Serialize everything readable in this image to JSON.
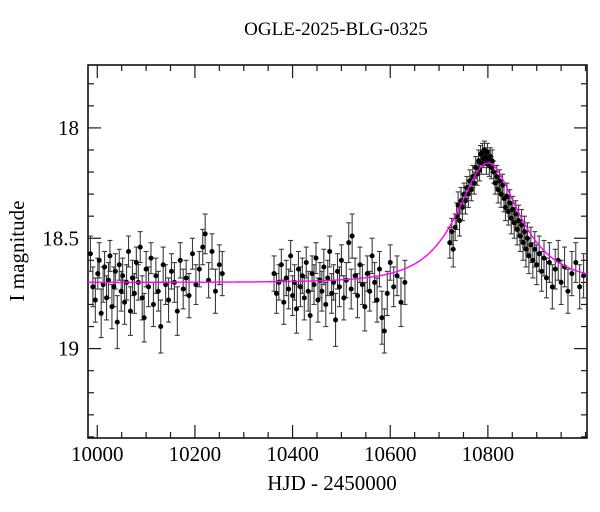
{
  "chart_data": {
    "type": "scatter",
    "title": "OGLE-2025-BLG-0325",
    "xlabel": "HJD - 2450000",
    "ylabel": "I magnitude",
    "grid": false,
    "legend": null,
    "x_range": [
      9981,
      11003
    ],
    "ylim": [
      19.405,
      17.715
    ],
    "y_axis_inverted": true,
    "x_major_ticks": [
      10000,
      10200,
      10400,
      10600,
      10800
    ],
    "x_tick_labels": [
      "10000",
      "10200",
      "10400",
      "10600",
      "10800"
    ],
    "x_minor_step": 50,
    "y_major_ticks": [
      18,
      18.5,
      19
    ],
    "y_tick_labels": [
      "18",
      "18.5",
      "19"
    ],
    "y_minor_step": 0.1,
    "marker_color": "#000000",
    "errorbar_color": "#3c3c3c",
    "model": {
      "type": "paczynski_microlensing",
      "baseline_mag": 18.7,
      "t0": 10800,
      "tE": 90,
      "u0": 0.72,
      "peak_mag": 18.16,
      "color": "#ff00ff"
    },
    "points_format": [
      "hjd_minus_2450000",
      "I_mag",
      "err_mag"
    ],
    "points": [
      [
        9986,
        18.57,
        0.08
      ],
      [
        9991,
        18.72,
        0.09
      ],
      [
        9996,
        18.78,
        0.1
      ],
      [
        10001,
        18.66,
        0.07
      ],
      [
        10004,
        18.6,
        0.08
      ],
      [
        10008,
        18.84,
        0.11
      ],
      [
        10012,
        18.71,
        0.08
      ],
      [
        10015,
        18.63,
        0.07
      ],
      [
        10019,
        18.77,
        0.1
      ],
      [
        10023,
        18.69,
        0.08
      ],
      [
        10026,
        18.58,
        0.07
      ],
      [
        10030,
        18.81,
        0.1
      ],
      [
        10034,
        18.72,
        0.09
      ],
      [
        10037,
        18.65,
        0.08
      ],
      [
        10041,
        18.88,
        0.12
      ],
      [
        10045,
        18.62,
        0.07
      ],
      [
        10049,
        18.74,
        0.09
      ],
      [
        10052,
        18.67,
        0.08
      ],
      [
        10056,
        18.79,
        0.1
      ],
      [
        10060,
        18.7,
        0.08
      ],
      [
        10064,
        18.56,
        0.07
      ],
      [
        10068,
        18.83,
        0.11
      ],
      [
        10072,
        18.68,
        0.08
      ],
      [
        10076,
        18.75,
        0.09
      ],
      [
        10080,
        18.61,
        0.07
      ],
      [
        10084,
        18.7,
        0.08
      ],
      [
        10088,
        18.54,
        0.07
      ],
      [
        10092,
        18.77,
        0.1
      ],
      [
        10096,
        18.86,
        0.11
      ],
      [
        10100,
        18.64,
        0.08
      ],
      [
        10105,
        18.72,
        0.09
      ],
      [
        10110,
        18.59,
        0.07
      ],
      [
        10115,
        18.8,
        0.1
      ],
      [
        10120,
        18.67,
        0.08
      ],
      [
        10125,
        18.74,
        0.09
      ],
      [
        10130,
        18.9,
        0.12
      ],
      [
        10135,
        18.62,
        0.08
      ],
      [
        10140,
        18.71,
        0.09
      ],
      [
        10146,
        18.78,
        0.1
      ],
      [
        10152,
        18.65,
        0.08
      ],
      [
        10158,
        18.7,
        0.09
      ],
      [
        10164,
        18.83,
        0.11
      ],
      [
        10170,
        18.6,
        0.08
      ],
      [
        10176,
        18.73,
        0.09
      ],
      [
        10182,
        18.68,
        0.08
      ],
      [
        10188,
        18.76,
        0.1
      ],
      [
        10195,
        18.57,
        0.07
      ],
      [
        10202,
        18.71,
        0.09
      ],
      [
        10209,
        18.64,
        0.08
      ],
      [
        10216,
        18.54,
        0.08
      ],
      [
        10221,
        18.48,
        0.09
      ],
      [
        10228,
        18.69,
        0.08
      ],
      [
        10235,
        18.56,
        0.08
      ],
      [
        10242,
        18.74,
        0.1
      ],
      [
        10250,
        18.62,
        0.09
      ],
      [
        10256,
        18.66,
        0.1
      ],
      [
        10362,
        18.66,
        0.08
      ],
      [
        10367,
        18.75,
        0.09
      ],
      [
        10372,
        18.7,
        0.08
      ],
      [
        10377,
        18.62,
        0.07
      ],
      [
        10382,
        18.79,
        0.1
      ],
      [
        10387,
        18.68,
        0.08
      ],
      [
        10392,
        18.73,
        0.09
      ],
      [
        10396,
        18.58,
        0.07
      ],
      [
        10400,
        18.76,
        0.09
      ],
      [
        10404,
        18.7,
        0.08
      ],
      [
        10408,
        18.82,
        0.11
      ],
      [
        10412,
        18.64,
        0.08
      ],
      [
        10416,
        18.72,
        0.09
      ],
      [
        10420,
        18.67,
        0.08
      ],
      [
        10424,
        18.77,
        0.1
      ],
      [
        10428,
        18.61,
        0.07
      ],
      [
        10432,
        18.74,
        0.09
      ],
      [
        10436,
        18.85,
        0.11
      ],
      [
        10440,
        18.66,
        0.08
      ],
      [
        10444,
        18.71,
        0.09
      ],
      [
        10448,
        18.59,
        0.07
      ],
      [
        10452,
        18.78,
        0.1
      ],
      [
        10456,
        18.69,
        0.08
      ],
      [
        10460,
        18.74,
        0.09
      ],
      [
        10464,
        18.63,
        0.08
      ],
      [
        10468,
        18.8,
        0.1
      ],
      [
        10472,
        18.68,
        0.08
      ],
      [
        10476,
        18.56,
        0.07
      ],
      [
        10480,
        18.75,
        0.09
      ],
      [
        10484,
        18.7,
        0.08
      ],
      [
        10488,
        18.87,
        0.12
      ],
      [
        10492,
        18.65,
        0.08
      ],
      [
        10496,
        18.72,
        0.09
      ],
      [
        10500,
        18.6,
        0.07
      ],
      [
        10505,
        18.77,
        0.1
      ],
      [
        10510,
        18.69,
        0.08
      ],
      [
        10515,
        18.52,
        0.09
      ],
      [
        10520,
        18.73,
        0.09
      ],
      [
        10522,
        18.49,
        0.1
      ],
      [
        10528,
        18.67,
        0.08
      ],
      [
        10533,
        18.76,
        0.1
      ],
      [
        10538,
        18.62,
        0.08
      ],
      [
        10543,
        18.71,
        0.09
      ],
      [
        10548,
        18.81,
        0.11
      ],
      [
        10553,
        18.66,
        0.08
      ],
      [
        10558,
        18.74,
        0.09
      ],
      [
        10563,
        18.58,
        0.08
      ],
      [
        10568,
        18.7,
        0.09
      ],
      [
        10573,
        18.78,
        0.1
      ],
      [
        10578,
        18.64,
        0.08
      ],
      [
        10583,
        18.86,
        0.12
      ],
      [
        10588,
        18.92,
        0.1
      ],
      [
        10594,
        18.75,
        0.1
      ],
      [
        10600,
        18.61,
        0.08
      ],
      [
        10607,
        18.72,
        0.09
      ],
      [
        10614,
        18.67,
        0.09
      ],
      [
        10622,
        18.79,
        0.11
      ],
      [
        10630,
        18.7,
        0.1
      ],
      [
        10722,
        18.52,
        0.07
      ],
      [
        10726,
        18.47,
        0.06
      ],
      [
        10729,
        18.55,
        0.08
      ],
      [
        10733,
        18.45,
        0.06
      ],
      [
        10736,
        18.4,
        0.06
      ],
      [
        10739,
        18.35,
        0.06
      ],
      [
        10742,
        18.42,
        0.07
      ],
      [
        10745,
        18.33,
        0.06
      ],
      [
        10748,
        18.36,
        0.06
      ],
      [
        10751,
        18.3,
        0.05
      ],
      [
        10754,
        18.33,
        0.06
      ],
      [
        10757,
        18.27,
        0.05
      ],
      [
        10760,
        18.3,
        0.06
      ],
      [
        10763,
        18.24,
        0.05
      ],
      [
        10766,
        18.28,
        0.05
      ],
      [
        10769,
        18.22,
        0.05
      ],
      [
        10772,
        18.25,
        0.05
      ],
      [
        10775,
        18.18,
        0.05
      ],
      [
        10778,
        18.21,
        0.05
      ],
      [
        10781,
        18.15,
        0.05
      ],
      [
        10783,
        18.19,
        0.05
      ],
      [
        10785,
        18.12,
        0.04
      ],
      [
        10787,
        18.16,
        0.05
      ],
      [
        10789,
        18.11,
        0.04
      ],
      [
        10791,
        18.14,
        0.04
      ],
      [
        10793,
        18.1,
        0.04
      ],
      [
        10795,
        18.13,
        0.04
      ],
      [
        10797,
        18.16,
        0.05
      ],
      [
        10799,
        18.11,
        0.04
      ],
      [
        10801,
        18.14,
        0.04
      ],
      [
        10803,
        18.17,
        0.05
      ],
      [
        10805,
        18.13,
        0.04
      ],
      [
        10807,
        18.18,
        0.05
      ],
      [
        10809,
        18.15,
        0.05
      ],
      [
        10812,
        18.2,
        0.05
      ],
      [
        10815,
        18.25,
        0.05
      ],
      [
        10818,
        18.22,
        0.05
      ],
      [
        10821,
        18.28,
        0.06
      ],
      [
        10824,
        18.24,
        0.05
      ],
      [
        10827,
        18.3,
        0.06
      ],
      [
        10830,
        18.26,
        0.05
      ],
      [
        10833,
        18.32,
        0.06
      ],
      [
        10836,
        18.36,
        0.06
      ],
      [
        10839,
        18.31,
        0.06
      ],
      [
        10842,
        18.38,
        0.06
      ],
      [
        10845,
        18.34,
        0.06
      ],
      [
        10848,
        18.41,
        0.07
      ],
      [
        10851,
        18.37,
        0.06
      ],
      [
        10854,
        18.43,
        0.07
      ],
      [
        10857,
        18.39,
        0.06
      ],
      [
        10860,
        18.46,
        0.07
      ],
      [
        10863,
        18.42,
        0.07
      ],
      [
        10866,
        18.49,
        0.07
      ],
      [
        10869,
        18.44,
        0.07
      ],
      [
        10872,
        18.52,
        0.08
      ],
      [
        10875,
        18.47,
        0.07
      ],
      [
        10878,
        18.55,
        0.08
      ],
      [
        10881,
        18.5,
        0.07
      ],
      [
        10884,
        18.58,
        0.08
      ],
      [
        10888,
        18.53,
        0.08
      ],
      [
        10892,
        18.6,
        0.08
      ],
      [
        10896,
        18.55,
        0.08
      ],
      [
        10900,
        18.62,
        0.09
      ],
      [
        10905,
        18.57,
        0.08
      ],
      [
        10910,
        18.65,
        0.09
      ],
      [
        10915,
        18.59,
        0.08
      ],
      [
        10920,
        18.68,
        0.09
      ],
      [
        10926,
        18.61,
        0.09
      ],
      [
        10932,
        18.72,
        0.1
      ],
      [
        10938,
        18.64,
        0.09
      ],
      [
        10944,
        18.6,
        0.09
      ],
      [
        10950,
        18.7,
        0.1
      ],
      [
        10957,
        18.63,
        0.09
      ],
      [
        10964,
        18.74,
        0.1
      ],
      [
        10972,
        18.66,
        0.1
      ],
      [
        10980,
        18.61,
        0.09
      ],
      [
        10988,
        18.72,
        0.1
      ],
      [
        10996,
        18.67,
        0.1
      ]
    ]
  }
}
